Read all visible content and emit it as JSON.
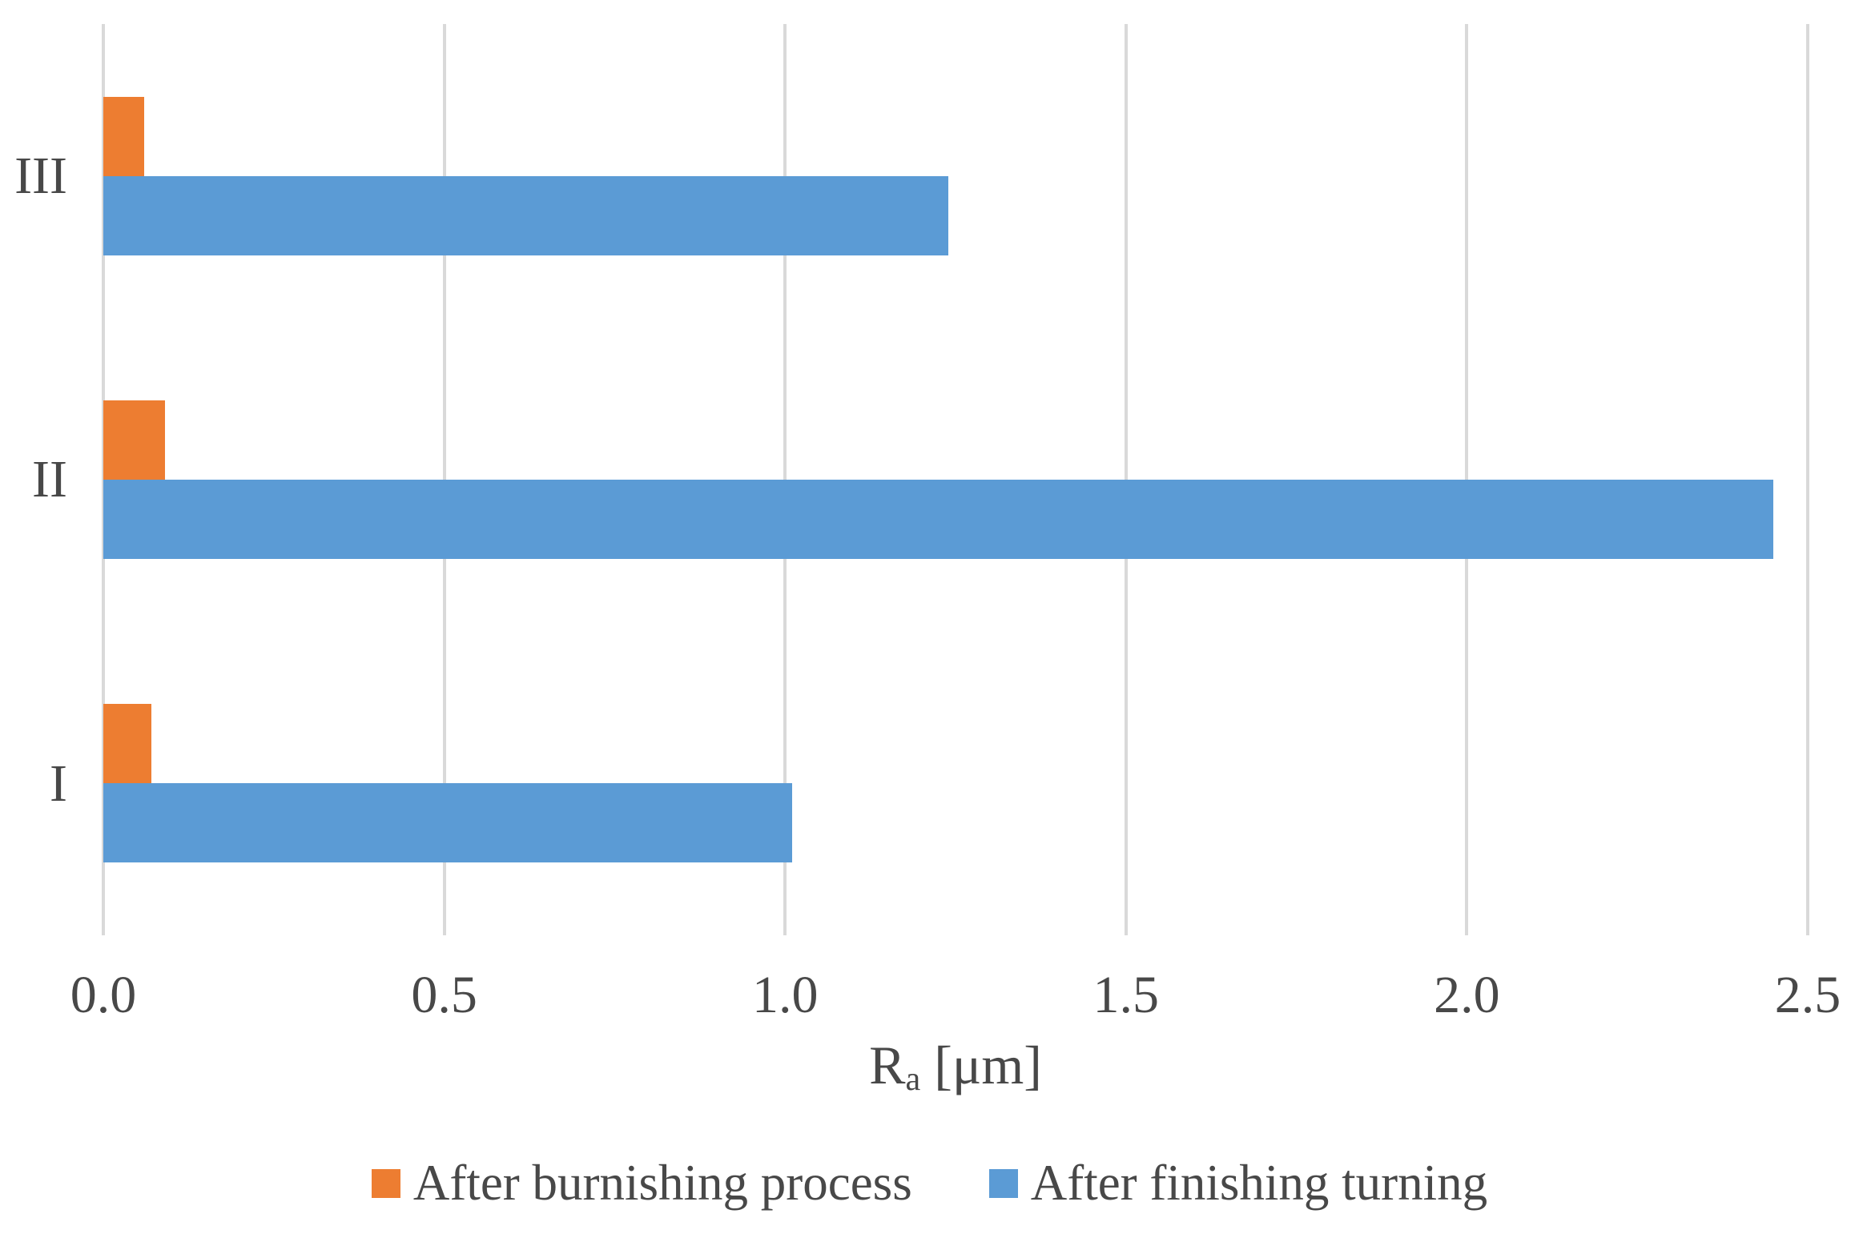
{
  "chart_data": {
    "type": "bar",
    "orientation": "horizontal",
    "title": "",
    "categories": [
      "I",
      "II",
      "III"
    ],
    "categories_display_order_top_to_bottom": [
      "III",
      "II",
      "I"
    ],
    "series": [
      {
        "name": "After burnishing process",
        "color": "#ED7D31",
        "values": [
          0.07,
          0.09,
          0.06
        ]
      },
      {
        "name": "After finishing turning",
        "color": "#5B9BD5",
        "values": [
          1.01,
          2.45,
          1.24
        ]
      }
    ],
    "xlabel": {
      "symbol": "R",
      "subscript": "a",
      "unit": " [μm]"
    },
    "xlim": [
      0,
      2.5
    ],
    "xticks": [
      {
        "value": 0,
        "label": "0.0"
      },
      {
        "value": 0.5,
        "label": "0.5"
      },
      {
        "value": 1,
        "label": "1.0"
      },
      {
        "value": 1.5,
        "label": "1.5"
      },
      {
        "value": 2,
        "label": "2.0"
      },
      {
        "value": 2.5,
        "label": "2.5"
      }
    ],
    "grid": "vertical-gridlines-only",
    "legend_position": "bottom",
    "gridline_color": "#D9D9D9",
    "text_color": "#484848"
  }
}
